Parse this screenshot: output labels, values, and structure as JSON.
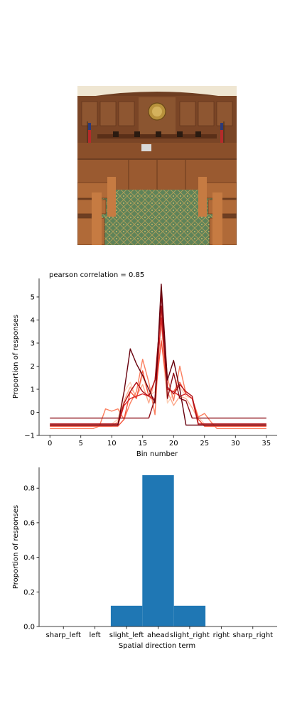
{
  "chart_data": [
    {
      "type": "line",
      "title": "pearson correlation = 0.85",
      "xlabel": "Bin number",
      "ylabel": "Proportion of responses",
      "xlim": [
        -1.75,
        36.75
      ],
      "ylim": [
        -1.0,
        5.8
      ],
      "x_ticks": [
        0,
        5,
        10,
        15,
        20,
        25,
        30,
        35
      ],
      "y_ticks": [
        -1,
        0,
        1,
        2,
        3,
        4,
        5
      ],
      "grid": false,
      "colors": [
        "#fdd0b8",
        "#fcaa8d",
        "#fb7e5e",
        "#f5523a",
        "#d62728",
        "#b11218",
        "#8b0a14",
        "#67000d"
      ],
      "x": [
        0,
        1,
        2,
        3,
        4,
        5,
        6,
        7,
        8,
        9,
        10,
        11,
        12,
        13,
        14,
        15,
        16,
        17,
        18,
        19,
        20,
        21,
        22,
        23,
        24,
        25,
        26,
        27,
        28,
        29,
        30,
        31,
        32,
        33,
        34,
        35
      ],
      "series": [
        {
          "values": [
            -0.5,
            -0.5,
            -0.5,
            -0.5,
            -0.5,
            -0.5,
            -0.5,
            -0.5,
            -0.5,
            -0.5,
            -0.5,
            -0.3,
            0.9,
            1.3,
            0.6,
            1.6,
            0.7,
            0.9,
            3.2,
            0.4,
            0.8,
            1.1,
            0.7,
            0.6,
            -0.2,
            -0.5,
            -0.5,
            -0.5,
            -0.5,
            -0.5,
            -0.5,
            -0.5,
            -0.5,
            -0.5,
            -0.5,
            -0.5
          ]
        },
        {
          "values": [
            -0.6,
            -0.6,
            -0.6,
            -0.6,
            -0.6,
            -0.6,
            -0.6,
            -0.6,
            -0.6,
            -0.6,
            -0.6,
            -0.4,
            0.5,
            1.1,
            0.7,
            1.2,
            0.4,
            1.4,
            3.8,
            0.9,
            0.3,
            0.7,
            0.6,
            0.2,
            -0.3,
            -0.6,
            -0.6,
            -0.6,
            -0.6,
            -0.6,
            -0.6,
            -0.6,
            -0.6,
            -0.6,
            -0.6,
            -0.6
          ]
        },
        {
          "values": [
            -0.7,
            -0.7,
            -0.7,
            -0.7,
            -0.7,
            -0.7,
            -0.7,
            -0.7,
            -0.6,
            0.15,
            0.05,
            0.15,
            -0.3,
            0.4,
            0.9,
            2.3,
            1.3,
            -0.1,
            4.5,
            1.5,
            0.5,
            2.0,
            0.8,
            0.6,
            -0.2,
            -0.05,
            -0.4,
            -0.7,
            -0.7,
            -0.7,
            -0.7,
            -0.7,
            -0.7,
            -0.7,
            -0.7,
            -0.7
          ]
        },
        {
          "values": [
            -0.6,
            -0.6,
            -0.6,
            -0.6,
            -0.6,
            -0.6,
            -0.6,
            -0.6,
            -0.6,
            -0.6,
            -0.6,
            -0.6,
            -0.3,
            0.9,
            0.6,
            1.8,
            0.7,
            0.6,
            3.1,
            1.0,
            0.9,
            1.3,
            0.8,
            0.6,
            -0.3,
            -0.6,
            -0.6,
            -0.6,
            -0.6,
            -0.6,
            -0.6,
            -0.6,
            -0.6,
            -0.6,
            -0.6,
            -0.6
          ]
        },
        {
          "values": [
            -0.55,
            -0.55,
            -0.55,
            -0.55,
            -0.55,
            -0.55,
            -0.55,
            -0.55,
            -0.55,
            -0.55,
            -0.55,
            -0.55,
            0.3,
            0.6,
            0.7,
            0.8,
            0.7,
            0.5,
            4.1,
            1.0,
            0.9,
            0.7,
            0.8,
            0.6,
            -0.55,
            -0.55,
            -0.55,
            -0.55,
            -0.55,
            -0.55,
            -0.55,
            -0.55,
            -0.55,
            -0.55,
            -0.55,
            -0.55
          ]
        },
        {
          "values": [
            -0.5,
            -0.5,
            -0.5,
            -0.5,
            -0.5,
            -0.5,
            -0.5,
            -0.5,
            -0.5,
            -0.5,
            -0.5,
            -0.5,
            0.4,
            0.9,
            1.3,
            0.9,
            0.7,
            1.4,
            4.6,
            1.1,
            0.8,
            1.2,
            0.9,
            0.7,
            -0.5,
            -0.5,
            -0.5,
            -0.5,
            -0.5,
            -0.5,
            -0.5,
            -0.5,
            -0.5,
            -0.5,
            -0.5,
            -0.5
          ]
        },
        {
          "values": [
            -0.25,
            -0.25,
            -0.25,
            -0.25,
            -0.25,
            -0.25,
            -0.25,
            -0.25,
            -0.25,
            -0.25,
            -0.25,
            -0.25,
            -0.25,
            -0.25,
            -0.25,
            -0.25,
            -0.25,
            0.6,
            5.2,
            0.6,
            1.7,
            0.6,
            0.5,
            -0.25,
            -0.25,
            -0.25,
            -0.25,
            -0.25,
            -0.25,
            -0.25,
            -0.25,
            -0.25,
            -0.25,
            -0.25,
            -0.25,
            -0.25
          ]
        },
        {
          "values": [
            -0.55,
            -0.55,
            -0.55,
            -0.55,
            -0.55,
            -0.55,
            -0.55,
            -0.55,
            -0.55,
            -0.55,
            -0.55,
            -0.55,
            0.9,
            2.75,
            2.1,
            1.6,
            1.0,
            0.4,
            5.55,
            1.4,
            2.25,
            1.0,
            -0.55,
            -0.55,
            -0.55,
            -0.55,
            -0.55,
            -0.55,
            -0.55,
            -0.55,
            -0.55,
            -0.55,
            -0.55,
            -0.55,
            -0.55,
            -0.55
          ]
        }
      ]
    },
    {
      "type": "bar",
      "xlabel": "Spatial direction term",
      "ylabel": "Proportion of responses",
      "categories": [
        "sharp_left",
        "left",
        "slight_left",
        "ahead",
        "slight_right",
        "right",
        "sharp_right"
      ],
      "values": [
        0.0,
        0.0,
        0.12,
        0.875,
        0.12,
        0.0,
        0.0
      ],
      "ylim": [
        0,
        0.92
      ],
      "y_ticks": [
        "0.0",
        "0.2",
        "0.4",
        "0.6",
        "0.8"
      ],
      "color": "#1f77b4",
      "grid": false
    }
  ],
  "photo": {
    "description_icon": "courtroom-photo",
    "colors": {
      "wood": "#9a5a30",
      "wall": "#6e3e22",
      "carpet": "#5d7f56",
      "ceiling": "#efe6d2",
      "seal": "#b8923c",
      "flag": "#b52a2a"
    }
  }
}
